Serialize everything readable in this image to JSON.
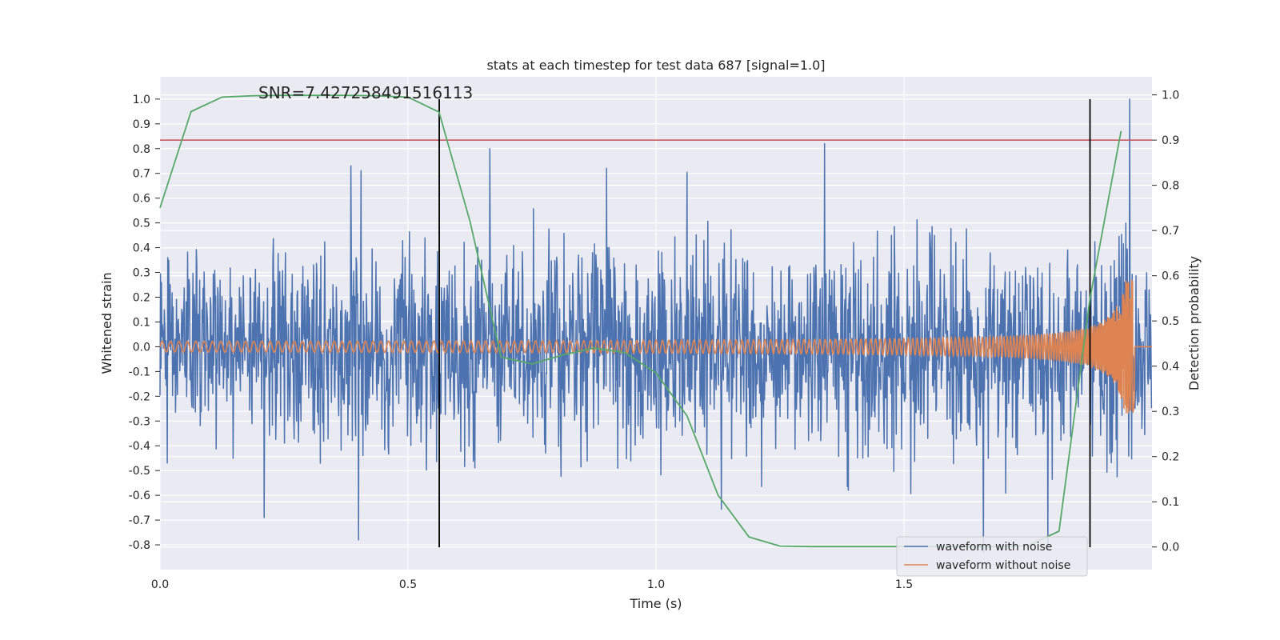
{
  "chart_data": {
    "type": "line",
    "title": "stats at each timestep for test data 687 [signal=1.0]",
    "xlabel": "Time (s)",
    "ylabel_left": "Whitened strain",
    "ylabel_right": "Detection probability",
    "annotation": "SNR=7.427258491516113",
    "xlim": [
      0.0,
      2.0
    ],
    "ylim_left": [
      -0.9,
      1.09
    ],
    "ylim_right": [
      -0.05,
      1.04
    ],
    "xticks": [
      "0.0",
      "0.5",
      "1.0",
      "1.5"
    ],
    "xtick_values": [
      0.0,
      0.5,
      1.0,
      1.5
    ],
    "yticks_left": [
      "1.0",
      "0.9",
      "0.8",
      "0.7",
      "0.6",
      "0.5",
      "0.4",
      "0.3",
      "0.2",
      "0.1",
      "0.0",
      "-0.1",
      "-0.2",
      "-0.3",
      "-0.4",
      "-0.5",
      "-0.6",
      "-0.7",
      "-0.8"
    ],
    "ytick_values_left": [
      1.0,
      0.9,
      0.8,
      0.7,
      0.6,
      0.5,
      0.4,
      0.3,
      0.2,
      0.1,
      0.0,
      -0.1,
      -0.2,
      -0.3,
      -0.4,
      -0.5,
      -0.6,
      -0.7,
      -0.8
    ],
    "yticks_right": [
      "1.0",
      "0.9",
      "0.8",
      "0.7",
      "0.6",
      "0.5",
      "0.4",
      "0.3",
      "0.2",
      "0.1",
      "0.0"
    ],
    "ytick_values_right": [
      1.0,
      0.9,
      0.8,
      0.7,
      0.6,
      0.5,
      0.4,
      0.3,
      0.2,
      0.1,
      0.0
    ],
    "threshold_right": 0.9,
    "vlines_x": [
      0.563,
      1.875
    ],
    "vline_range_left": [
      -0.81,
      1.0
    ],
    "series": [
      {
        "name": "waveform with noise",
        "color": "#4c72b0",
        "axis": "left",
        "kind": "noise",
        "n_samples": 2048,
        "seed": 687,
        "peaks": [
          {
            "t": 0.385,
            "v": 0.73
          },
          {
            "t": 0.4,
            "v": -0.78
          },
          {
            "t": 0.21,
            "v": -0.69
          },
          {
            "t": 0.665,
            "v": 0.8
          },
          {
            "t": 1.34,
            "v": 0.82
          },
          {
            "t": 1.955,
            "v": 1.0
          },
          {
            "t": 1.66,
            "v": -0.83
          },
          {
            "t": 1.79,
            "v": -0.82
          },
          {
            "t": 0.9,
            "v": 0.72
          }
        ],
        "amplitude_sd": 0.2
      },
      {
        "name": "waveform without noise",
        "color": "#dd8452",
        "axis": "left",
        "kind": "chirp",
        "amplitude_start": 0.018,
        "amplitude_end": 0.27,
        "t_merge": 1.965
      },
      {
        "name": "detection probability",
        "color": "#55a868",
        "axis": "right",
        "x": [
          0.0,
          0.0625,
          0.125,
          0.1875,
          0.25,
          0.3125,
          0.375,
          0.4375,
          0.5,
          0.5625,
          0.625,
          0.6875,
          0.75,
          0.8125,
          0.875,
          0.9375,
          1.0,
          1.0625,
          1.125,
          1.1875,
          1.25,
          1.3125,
          1.375,
          1.4375,
          1.5,
          1.5625,
          1.625,
          1.6875,
          1.75,
          1.8125,
          1.875,
          1.9375
        ],
        "y": [
          0.75,
          0.963,
          0.995,
          0.998,
          0.999,
          0.999,
          0.999,
          0.998,
          0.995,
          0.962,
          0.72,
          0.42,
          0.405,
          0.425,
          0.44,
          0.43,
          0.385,
          0.29,
          0.115,
          0.022,
          0.002,
          0.001,
          0.001,
          0.001,
          0.001,
          0.001,
          0.001,
          0.001,
          0.003,
          0.035,
          0.55,
          0.92
        ]
      }
    ],
    "threshold_color": "#c44e52",
    "legend": [
      "waveform with noise",
      "waveform without noise"
    ],
    "legend_position": "lower-right"
  }
}
